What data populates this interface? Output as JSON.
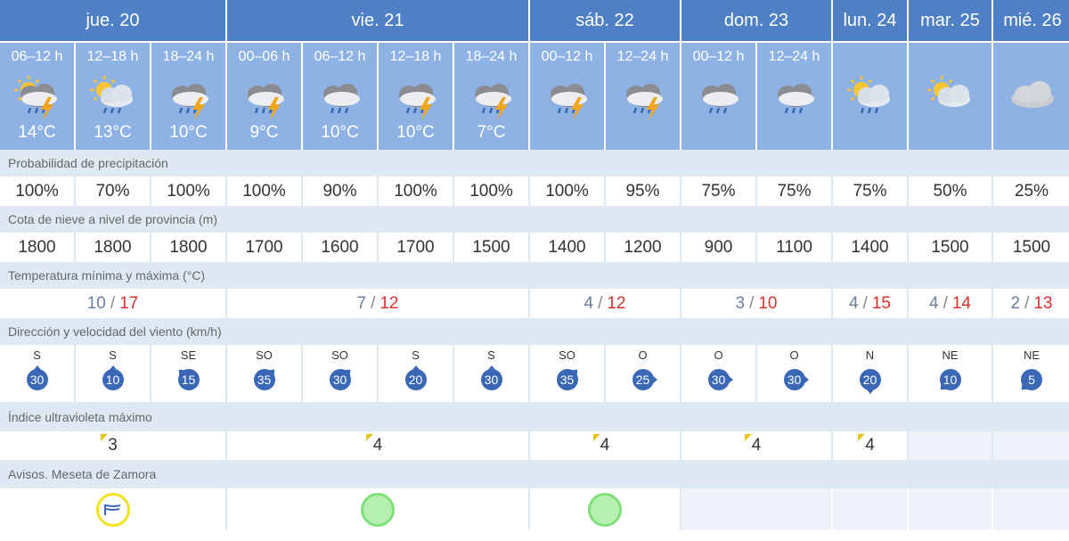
{
  "days": [
    {
      "label": "jue. 20"
    },
    {
      "label": "vie. 21"
    },
    {
      "label": "sáb. 22"
    },
    {
      "label": "dom. 23"
    },
    {
      "label": "lun. 24"
    },
    {
      "label": "mar. 25"
    },
    {
      "label": "mié. 26"
    }
  ],
  "periods": [
    {
      "label": "06–12 h",
      "icon": "partly-sunny-thunderstorm-icon",
      "temp": "14°C"
    },
    {
      "label": "12–18 h",
      "icon": "partly-sunny-rain-icon",
      "temp": "13°C"
    },
    {
      "label": "18–24 h",
      "icon": "cloudy-thunderstorm-icon",
      "temp": "10°C"
    },
    {
      "label": "00–06 h",
      "icon": "cloudy-thunderstorm-icon",
      "temp": "9°C"
    },
    {
      "label": "06–12 h",
      "icon": "cloudy-rain-icon",
      "temp": "10°C"
    },
    {
      "label": "12–18 h",
      "icon": "cloudy-thunderstorm-icon",
      "temp": "10°C"
    },
    {
      "label": "18–24 h",
      "icon": "cloudy-thunderstorm-icon",
      "temp": "7°C"
    },
    {
      "label": "00–12 h",
      "icon": "cloudy-thunderstorm-icon",
      "temp": ""
    },
    {
      "label": "12–24 h",
      "icon": "cloudy-thunderstorm-icon",
      "temp": ""
    },
    {
      "label": "00–12 h",
      "icon": "cloudy-rain-icon",
      "temp": ""
    },
    {
      "label": "12–24 h",
      "icon": "cloudy-rain-icon",
      "temp": ""
    },
    {
      "label": "",
      "icon": "partly-sunny-rain-icon",
      "temp": ""
    },
    {
      "label": "",
      "icon": "partly-sunny-icon",
      "temp": ""
    },
    {
      "label": "",
      "icon": "cloud-icon",
      "temp": ""
    }
  ],
  "sections": {
    "precip": "Probabilidad de precipitación",
    "snow": "Cota de nieve a nivel de provincia (m)",
    "temp": "Temperatura mínima y máxima (°C)",
    "wind": "Dirección y velocidad del viento (km/h)",
    "uv": "Índice ultravioleta máximo",
    "alerts": "Avisos. Meseta de Zamora"
  },
  "precip": [
    "100%",
    "70%",
    "100%",
    "100%",
    "90%",
    "100%",
    "100%",
    "100%",
    "95%",
    "75%",
    "75%",
    "75%",
    "50%",
    "25%"
  ],
  "snow": [
    "1800",
    "1800",
    "1800",
    "1700",
    "1600",
    "1700",
    "1500",
    "1400",
    "1200",
    "900",
    "1100",
    "1400",
    "1500",
    "1500"
  ],
  "temps": [
    {
      "min": "10",
      "max": "17"
    },
    {
      "min": "7",
      "max": "12"
    },
    {
      "min": "4",
      "max": "12"
    },
    {
      "min": "3",
      "max": "10"
    },
    {
      "min": "4",
      "max": "15"
    },
    {
      "min": "4",
      "max": "14"
    },
    {
      "min": "2",
      "max": "13"
    }
  ],
  "temp_sep": "/",
  "wind": [
    {
      "dir": "S",
      "speed": "30"
    },
    {
      "dir": "S",
      "speed": "10"
    },
    {
      "dir": "SE",
      "speed": "15"
    },
    {
      "dir": "SO",
      "speed": "35"
    },
    {
      "dir": "SO",
      "speed": "30"
    },
    {
      "dir": "S",
      "speed": "20"
    },
    {
      "dir": "S",
      "speed": "30"
    },
    {
      "dir": "SO",
      "speed": "35"
    },
    {
      "dir": "O",
      "speed": "25"
    },
    {
      "dir": "O",
      "speed": "30"
    },
    {
      "dir": "O",
      "speed": "30"
    },
    {
      "dir": "N",
      "speed": "20"
    },
    {
      "dir": "NE",
      "speed": "10"
    },
    {
      "dir": "NE",
      "speed": "5"
    }
  ],
  "uv": [
    "3",
    "4",
    "4",
    "4",
    "4",
    "",
    ""
  ],
  "alerts": [
    "wind-alert-icon",
    "no-alert-icon",
    "no-alert-icon",
    "",
    "",
    "",
    ""
  ],
  "colors": {
    "day_header": "#4f7fc4",
    "period_header": "#8eb2e3",
    "section_bg": "#dfe9f3",
    "max_temp": "#d9302c",
    "min_temp": "#6b7f9e",
    "wind_badge": "#3a68b6",
    "uv_flag": "#e8c51c",
    "alert_green": "#7fe07a",
    "alert_yellow": "#f2e21a"
  }
}
